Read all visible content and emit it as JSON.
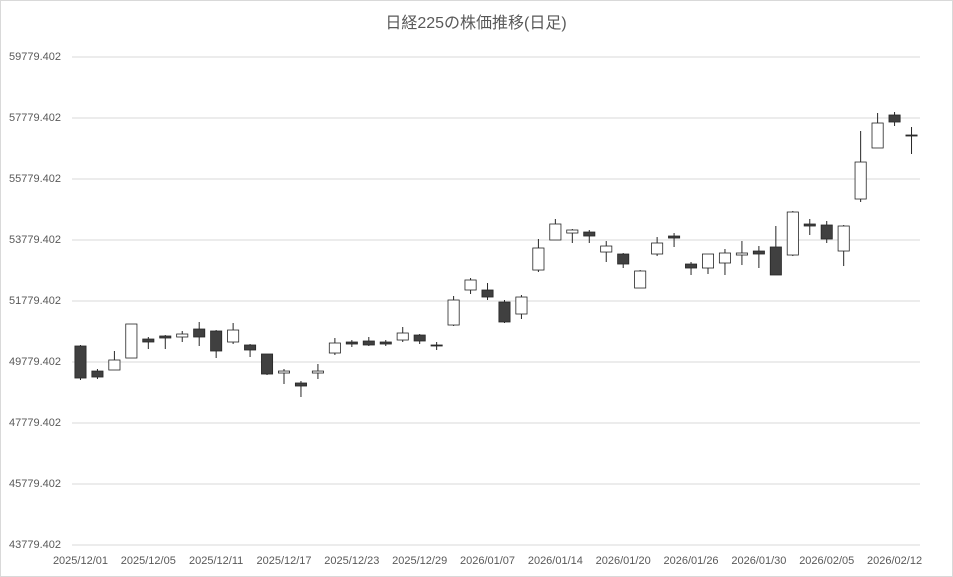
{
  "chart_data": {
    "type": "candlestick",
    "title": "日経225の株価推移(日足)",
    "categories": [
      "2025/12/01",
      null,
      null,
      null,
      "2025/12/05",
      null,
      null,
      null,
      "2025/12/11",
      null,
      null,
      null,
      "2025/12/17",
      null,
      null,
      null,
      "2025/12/23",
      null,
      null,
      null,
      "2025/12/29",
      null,
      null,
      null,
      "2026/01/07",
      null,
      null,
      null,
      "2026/01/14",
      null,
      null,
      null,
      "2026/01/20",
      null,
      null,
      null,
      "2026/01/26",
      null,
      null,
      null,
      "2026/01/30",
      null,
      null,
      null,
      "2026/02/05",
      null,
      null,
      null,
      "2026/02/12",
      null
    ],
    "open": [
      50304,
      49483,
      49517,
      49910,
      50533,
      50632,
      50599,
      50861,
      50796,
      50435,
      50337,
      50042,
      49418,
      49091,
      49418,
      50074,
      50435,
      50468,
      50435,
      50500,
      50664,
      50337,
      50992,
      52140,
      52140,
      51746,
      51353,
      52795,
      53779,
      54008,
      54041,
      53385,
      53320,
      52205,
      53320,
      53910,
      52992,
      52861,
      53025,
      53287,
      53418,
      53550,
      53287,
      54304,
      54271,
      53418,
      55123,
      56796,
      57878,
      57222
    ],
    "high": [
      50337,
      49550,
      50140,
      51025,
      50599,
      50664,
      50796,
      51091,
      50828,
      51058,
      50369,
      50042,
      49550,
      49156,
      49714,
      50566,
      50500,
      50599,
      50500,
      50927,
      50697,
      50435,
      51943,
      52533,
      52369,
      51812,
      51976,
      53812,
      54468,
      54140,
      54107,
      53746,
      53353,
      52795,
      53877,
      54008,
      53058,
      53320,
      53484,
      53746,
      53582,
      54238,
      54730,
      54468,
      54402,
      54271,
      57353,
      57943,
      57976,
      57484
    ],
    "low": [
      49189,
      49222,
      49517,
      49910,
      50205,
      50205,
      50435,
      50304,
      49910,
      50369,
      49943,
      49353,
      49058,
      48632,
      49222,
      50009,
      50271,
      50304,
      50304,
      50435,
      50369,
      50173,
      50960,
      52009,
      51812,
      51058,
      51189,
      52730,
      53779,
      53681,
      53681,
      53058,
      52861,
      52205,
      53254,
      53550,
      52632,
      52664,
      52632,
      52959,
      52861,
      52632,
      53254,
      53943,
      53681,
      52926,
      55025,
      56796,
      57517,
      56599
    ],
    "close": [
      49254,
      49287,
      49845,
      51025,
      50435,
      50566,
      50697,
      50599,
      50140,
      50828,
      50173,
      49385,
      49483,
      48992,
      49483,
      50402,
      50369,
      50337,
      50369,
      50730,
      50468,
      50304,
      51812,
      52468,
      51910,
      51091,
      51910,
      53517,
      54304,
      54107,
      53910,
      53582,
      52992,
      52763,
      53681,
      53844,
      52861,
      53320,
      53353,
      53353,
      53320,
      52632,
      54697,
      54238,
      53812,
      54238,
      56336,
      57615,
      57648,
      57189
    ],
    "up_color": "#ffffff",
    "down_color": "#404040",
    "line_color": "#262626",
    "ylim": [
      43779.402,
      59779.402
    ],
    "yticks": [
      43779.402,
      45779.402,
      47779.402,
      49779.402,
      51779.402,
      53779.402,
      55779.402,
      57779.402,
      59779.402
    ],
    "grid": true
  }
}
